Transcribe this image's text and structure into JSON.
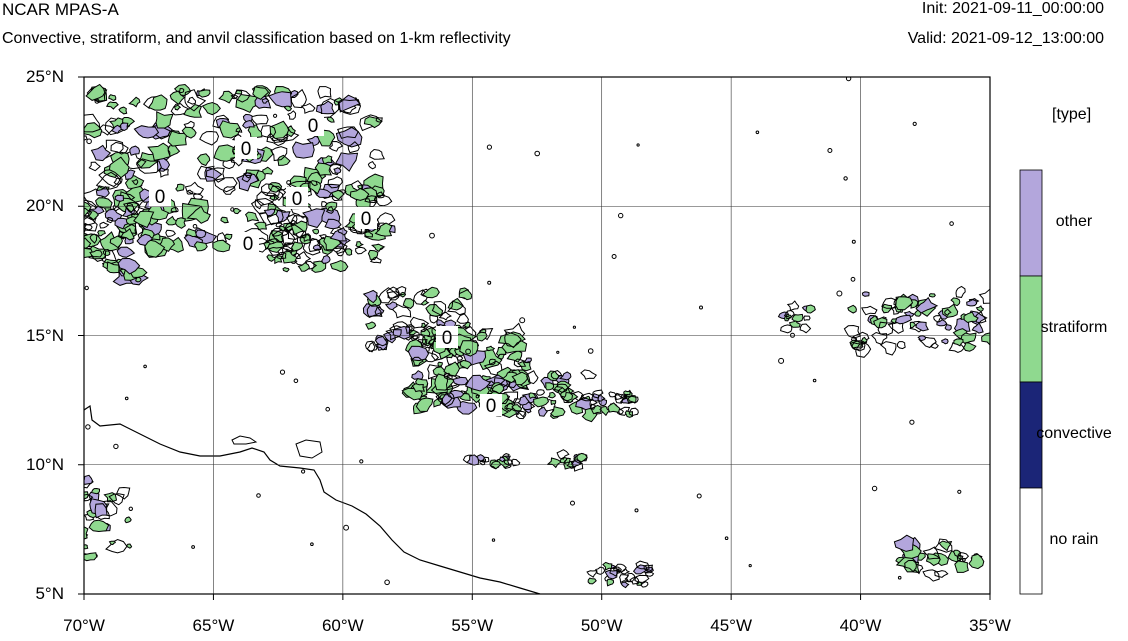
{
  "header": {
    "title": "NCAR MPAS-A",
    "subtitle": "Convective, stratiform, and anvil classification based on 1-km reflectivity",
    "init": "Init: 2021-09-11_00:00:00",
    "valid": "Valid: 2021-09-12_13:00:00"
  },
  "map": {
    "extent": {
      "lon_min": -70,
      "lon_max": -35,
      "lat_min": 5,
      "lat_max": 25
    },
    "lat_labels": [
      "25°N",
      "20°N",
      "15°N",
      "10°N",
      "5°N"
    ],
    "lon_labels": [
      "70°W",
      "65°W",
      "60°W",
      "55°W",
      "50°W",
      "45°W",
      "40°W",
      "35°W"
    ],
    "contour_labels": [
      "0",
      "0",
      "0",
      "0",
      "0",
      "0",
      "0",
      "0"
    ],
    "colors": {
      "stratiform": "#8fd98f",
      "other": "#b3a6dc",
      "convective": "#1b2577",
      "no_rain": "#ffffff",
      "contour": "#000000",
      "coastline": "#000000",
      "grid": "#333333"
    }
  },
  "legend": {
    "title": "[type]",
    "entries": [
      {
        "label": "other",
        "color": "#b3a6dc"
      },
      {
        "label": "stratiform",
        "color": "#8fd98f"
      },
      {
        "label": "convective",
        "color": "#1b2577"
      },
      {
        "label": "no rain",
        "color": "#ffffff"
      }
    ]
  }
}
